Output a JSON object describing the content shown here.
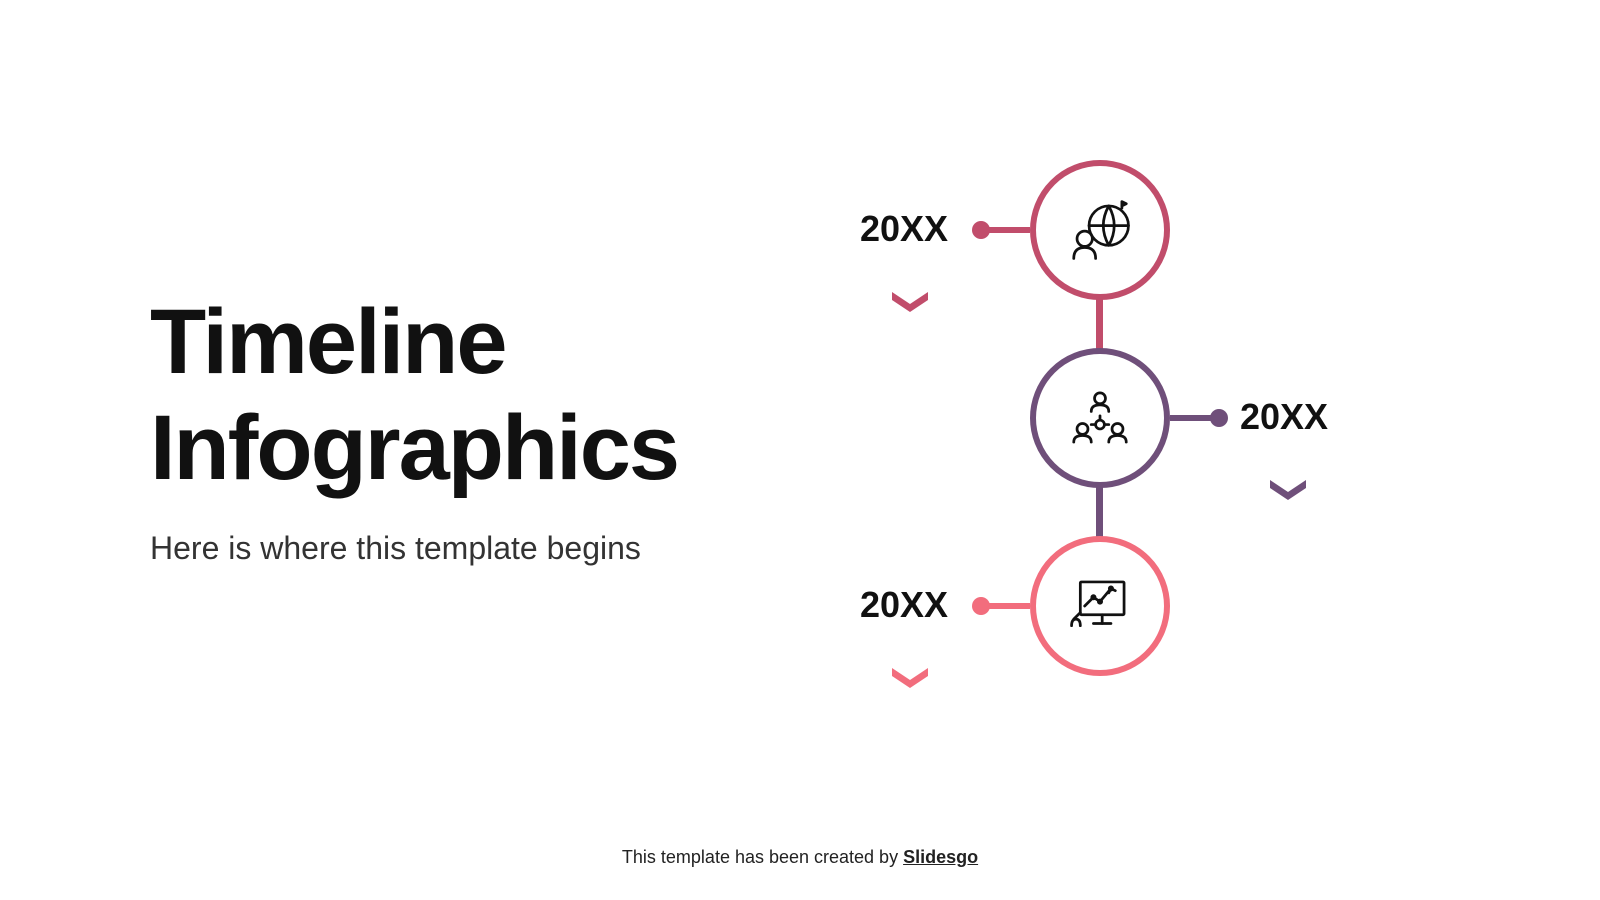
{
  "title": "Timeline\nInfographics",
  "subtitle": "Here is where this template begins",
  "footer_text": "This template has been created by ",
  "footer_brand": "Slidesgo",
  "background_color": "#ffffff",
  "title_color": "#111111",
  "title_fontsize": 92,
  "title_fontweight": 900,
  "subtitle_color": "#333333",
  "subtitle_fontsize": 32,
  "footer_fontsize": 18,
  "timeline": {
    "type": "infographic",
    "orientation": "vertical",
    "node_diameter": 140,
    "node_border_width": 6,
    "connector_line_length": 48,
    "connector_line_width": 6,
    "connector_dot_diameter": 18,
    "vertical_link_width": 7,
    "vertical_link_height": 60,
    "year_fontsize": 36,
    "year_fontweight": 800,
    "year_color": "#111111",
    "nodes": [
      {
        "year": "20XX",
        "label_side": "left",
        "color": "#c14d6b",
        "chevron_color": "#c14d6b",
        "icon": "globe-person-icon"
      },
      {
        "year": "20XX",
        "label_side": "right",
        "color": "#6f4f7a",
        "chevron_color": "#6f4f7a",
        "icon": "team-icon"
      },
      {
        "year": "20XX",
        "label_side": "left",
        "color": "#f26d7d",
        "chevron_color": "#f26d7d",
        "icon": "chart-presentation-icon"
      }
    ],
    "vertical_links": [
      {
        "color": "#c14d6b"
      },
      {
        "color": "#6f4f7a"
      }
    ]
  }
}
